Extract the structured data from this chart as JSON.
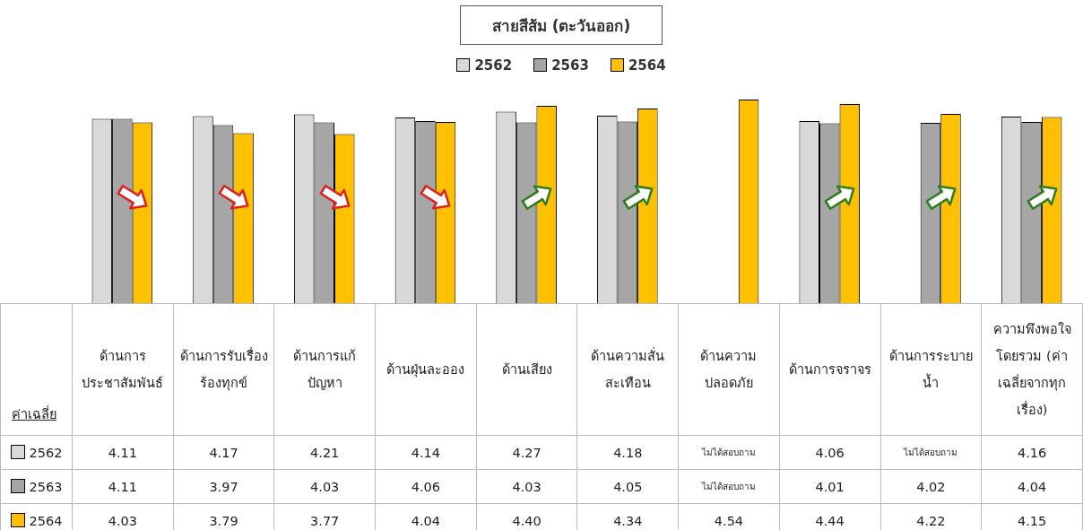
{
  "chart_data": {
    "type": "bar",
    "title": "สายสีส้ม (ตะวันออก)",
    "xlabel": "ค่าเฉลี่ย",
    "categories": [
      "ด้านการประชาสัมพันธ์",
      "ด้านการรับเรื่องร้องทุกข์",
      "ด้านการแก้ปัญหา",
      "ด้านฝุ่นละออง",
      "ด้านเสียง",
      "ด้านความสั่นสะเทือน",
      "ด้านความปลอดภัย",
      "ด้านการจราจร",
      "ด้านการระบายน้ำ",
      "ความพึงพอใจโดยรวม (ค่าเฉลี่ยจากทุกเรื่อง)"
    ],
    "series": [
      {
        "name": "2562",
        "color": "#d9d9d9",
        "values": [
          4.11,
          4.17,
          4.21,
          4.14,
          4.27,
          4.18,
          null,
          4.06,
          null,
          4.16
        ],
        "value_labels": [
          "4.11",
          "4.17",
          "4.21",
          "4.14",
          "4.27",
          "4.18",
          "ไม่ได้สอบถาม",
          "4.06",
          "ไม่ได้สอบถาม",
          "4.16"
        ]
      },
      {
        "name": "2563",
        "color": "#a6a6a6",
        "values": [
          4.11,
          3.97,
          4.03,
          4.06,
          4.03,
          4.05,
          null,
          4.01,
          4.02,
          4.04
        ],
        "value_labels": [
          "4.11",
          "3.97",
          "4.03",
          "4.06",
          "4.03",
          "4.05",
          "ไม่ได้สอบถาม",
          "4.01",
          "4.02",
          "4.04"
        ]
      },
      {
        "name": "2564",
        "color": "#ffc000",
        "values": [
          4.03,
          3.79,
          3.77,
          4.04,
          4.4,
          4.34,
          4.54,
          4.44,
          4.22,
          4.15
        ],
        "value_labels": [
          "4.03",
          "3.79",
          "3.77",
          "4.04",
          "4.40",
          "4.34",
          "4.54",
          "4.44",
          "4.22",
          "4.15"
        ]
      }
    ],
    "tick_labels": false,
    "legend": "top"
  }
}
